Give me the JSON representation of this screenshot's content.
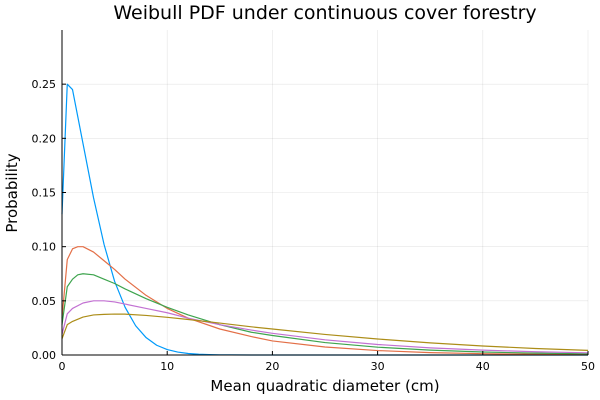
{
  "chart_data": {
    "type": "line",
    "title": "Weibull PDF under continuous cover forestry",
    "xlabel": "Mean quadratic diameter (cm)",
    "ylabel": "Probability",
    "xlim": [
      0,
      50
    ],
    "ylim": [
      0,
      0.3
    ],
    "xticks": [
      0,
      10,
      20,
      30,
      40,
      50
    ],
    "xtick_labels": [
      "0",
      "10",
      "20",
      "30",
      "40",
      "50"
    ],
    "yticks": [
      0,
      0.05,
      0.1,
      0.15,
      0.2,
      0.25
    ],
    "ytick_labels": [
      "0.00",
      "0.05",
      "0.10",
      "0.15",
      "0.20",
      "0.25"
    ],
    "grid": true,
    "legend": "none",
    "series": [
      {
        "color": "#009AFA",
        "x": [
          0,
          0.5,
          1,
          2,
          3,
          4,
          5,
          6,
          7,
          8,
          9,
          10,
          11,
          12,
          13,
          14,
          15,
          16,
          18,
          20,
          25,
          30,
          40,
          50
        ],
        "y": [
          0.13,
          0.25,
          0.245,
          0.195,
          0.145,
          0.102,
          0.068,
          0.044,
          0.027,
          0.016,
          0.009,
          0.005,
          0.0027,
          0.0014,
          0.0007,
          0.00035,
          0.00017,
          8e-05,
          2e-05,
          0.0,
          0.0,
          0.0,
          0.0,
          0.0
        ]
      },
      {
        "color": "#E36F47",
        "x": [
          0,
          0.5,
          1,
          1.5,
          2,
          3,
          4,
          5,
          6,
          8,
          10,
          12,
          15,
          18,
          20,
          25,
          30,
          35,
          40,
          45,
          50
        ],
        "y": [
          0.034,
          0.088,
          0.098,
          0.1,
          0.1,
          0.095,
          0.087,
          0.079,
          0.07,
          0.055,
          0.043,
          0.034,
          0.024,
          0.017,
          0.013,
          0.0074,
          0.0041,
          0.0022,
          0.0012,
          0.0007,
          0.0004
        ]
      },
      {
        "color": "#3EA44E",
        "x": [
          0,
          0.5,
          1,
          1.5,
          2,
          3,
          4,
          5,
          6,
          8,
          10,
          12,
          15,
          18,
          20,
          25,
          30,
          35,
          40,
          45,
          50
        ],
        "y": [
          0.028,
          0.063,
          0.07,
          0.074,
          0.075,
          0.074,
          0.07,
          0.066,
          0.061,
          0.052,
          0.044,
          0.037,
          0.028,
          0.021,
          0.018,
          0.0115,
          0.0072,
          0.0045,
          0.0028,
          0.0017,
          0.0011
        ]
      },
      {
        "color": "#C271D2",
        "x": [
          0,
          0.5,
          1,
          2,
          3,
          4,
          5,
          6,
          8,
          10,
          12,
          15,
          18,
          20,
          25,
          30,
          35,
          40,
          45,
          50
        ],
        "y": [
          0.019,
          0.038,
          0.043,
          0.048,
          0.05,
          0.05,
          0.049,
          0.047,
          0.043,
          0.039,
          0.034,
          0.028,
          0.023,
          0.02,
          0.014,
          0.0097,
          0.0066,
          0.0045,
          0.003,
          0.002
        ]
      },
      {
        "color": "#AC8D18",
        "x": [
          0,
          0.5,
          1,
          2,
          3,
          4,
          5,
          6,
          8,
          10,
          12,
          15,
          18,
          20,
          25,
          30,
          35,
          40,
          45,
          50
        ],
        "y": [
          0.015,
          0.028,
          0.031,
          0.035,
          0.037,
          0.0375,
          0.0378,
          0.0377,
          0.0365,
          0.0348,
          0.0328,
          0.0295,
          0.026,
          0.024,
          0.019,
          0.0148,
          0.0112,
          0.0083,
          0.006,
          0.0043
        ]
      }
    ]
  }
}
